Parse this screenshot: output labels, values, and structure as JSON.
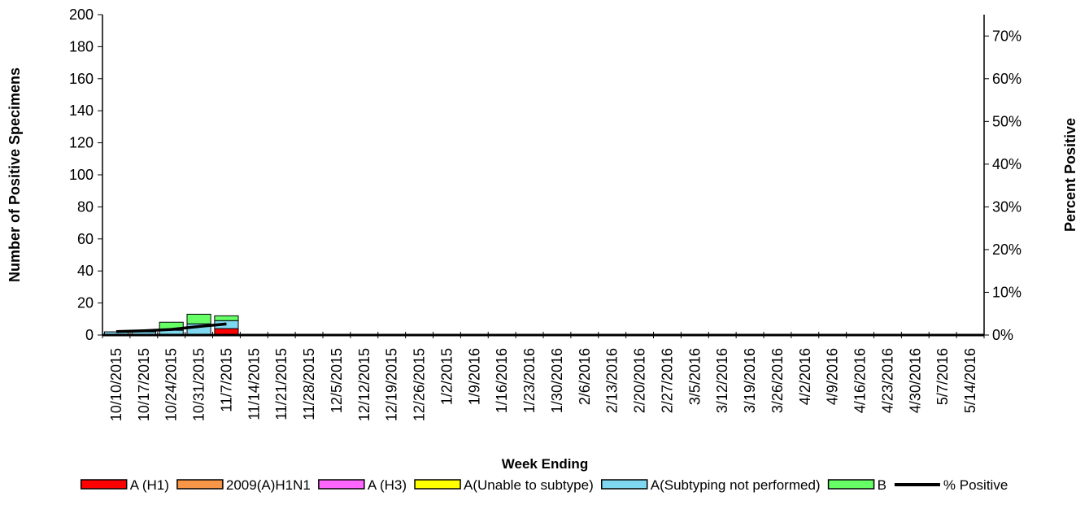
{
  "chart_data": {
    "type": "bar",
    "stacked": true,
    "xlabel": "Week Ending",
    "ylabel": "Number of  Positive Specimens",
    "y2label": "Percent Positive",
    "ylim": [
      0,
      200
    ],
    "yticks": [
      0,
      20,
      40,
      60,
      80,
      100,
      120,
      140,
      160,
      180,
      200
    ],
    "y2lim": [
      0,
      75
    ],
    "y2ticks": [
      "0%",
      "10%",
      "20%",
      "30%",
      "40%",
      "50%",
      "60%",
      "70%"
    ],
    "y2tick_values": [
      0,
      10,
      20,
      30,
      40,
      50,
      60,
      70
    ],
    "grid": false,
    "legend_position": "bottom",
    "categories": [
      "10/10/2015",
      "10/17/2015",
      "10/24/2015",
      "10/31/2015",
      "11/7/2015",
      "11/14/2015",
      "11/21/2015",
      "11/28/2015",
      "12/5/2015",
      "12/12/2015",
      "12/19/2015",
      "12/26/2015",
      "1/2/2015",
      "1/9/2016",
      "1/16/2016",
      "1/23/2016",
      "1/30/2016",
      "2/6/2016",
      "2/13/2016",
      "2/20/2016",
      "2/27/2016",
      "3/5/2016",
      "3/12/2016",
      "3/19/2016",
      "3/26/2016",
      "4/2/2016",
      "4/9/2016",
      "4/16/2016",
      "4/23/2016",
      "4/30/2016",
      "5/7/2016",
      "5/14/2016"
    ],
    "series": [
      {
        "name": "A (H1)",
        "color": "#ff0000",
        "values": [
          0,
          0,
          0,
          0,
          4,
          0,
          0,
          0,
          0,
          0,
          0,
          0,
          0,
          0,
          0,
          0,
          0,
          0,
          0,
          0,
          0,
          0,
          0,
          0,
          0,
          0,
          0,
          0,
          0,
          0,
          0,
          0
        ]
      },
      {
        "name": "2009(A)H1N1",
        "color": "#f79646",
        "values": [
          0,
          0,
          0,
          0,
          0,
          0,
          0,
          0,
          0,
          0,
          0,
          0,
          0,
          0,
          0,
          0,
          0,
          0,
          0,
          0,
          0,
          0,
          0,
          0,
          0,
          0,
          0,
          0,
          0,
          0,
          0,
          0
        ]
      },
      {
        "name": "A (H3)",
        "color": "#ff66ff",
        "values": [
          0,
          0,
          0,
          0,
          0,
          0,
          0,
          0,
          0,
          0,
          0,
          0,
          0,
          0,
          0,
          0,
          0,
          0,
          0,
          0,
          0,
          0,
          0,
          0,
          0,
          0,
          0,
          0,
          0,
          0,
          0,
          0
        ]
      },
      {
        "name": "A(Unable to subtype)",
        "color": "#ffff00",
        "values": [
          0,
          0,
          0,
          0,
          0,
          0,
          0,
          0,
          0,
          0,
          0,
          0,
          0,
          0,
          0,
          0,
          0,
          0,
          0,
          0,
          0,
          0,
          0,
          0,
          0,
          0,
          0,
          0,
          0,
          0,
          0,
          0
        ]
      },
      {
        "name": "A(Subtyping not performed)",
        "color": "#7fd8f0",
        "values": [
          2,
          2,
          3,
          7,
          5,
          0,
          0,
          0,
          0,
          0,
          0,
          0,
          0,
          0,
          0,
          0,
          0,
          0,
          0,
          0,
          0,
          0,
          0,
          0,
          0,
          0,
          0,
          0,
          0,
          0,
          0,
          0
        ]
      },
      {
        "name": "B",
        "color": "#66ff66",
        "values": [
          0,
          1,
          5,
          6,
          3,
          0,
          0,
          0,
          0,
          0,
          0,
          0,
          0,
          0,
          0,
          0,
          0,
          0,
          0,
          0,
          0,
          0,
          0,
          0,
          0,
          0,
          0,
          0,
          0,
          0,
          0,
          0
        ]
      }
    ],
    "line_series": {
      "name": "% Positive",
      "color": "#000000",
      "axis": "right",
      "values": [
        0.8,
        1.0,
        1.3,
        2.0,
        2.6
      ]
    }
  }
}
